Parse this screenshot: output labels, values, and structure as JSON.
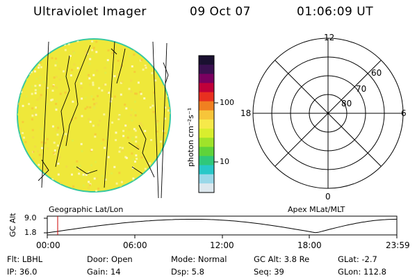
{
  "header": {
    "title": "Ultraviolet Imager",
    "date": "09 Oct 07",
    "time": "01:06:09 UT"
  },
  "colorbar": {
    "unit_label": "photon cm⁻²s⁻¹",
    "ticks": [
      "100",
      "10"
    ],
    "colors": [
      "#1a1030",
      "#3a1050",
      "#7a0060",
      "#c0003a",
      "#e83020",
      "#f08020",
      "#f7c53a",
      "#f6e94a",
      "#d9ee2e",
      "#9fe32a",
      "#5fd33a",
      "#2fc87a",
      "#28c8c8",
      "#9ad8e8",
      "#dde8ee"
    ]
  },
  "earth_image": {
    "label": "Geographic Lat/Lon",
    "fill_color": "#efe83a",
    "limb_color": "#38c8a0"
  },
  "polar_plot": {
    "label": "Apex MLat/MLT",
    "mlt_labels": {
      "top": "12",
      "left": "18",
      "right": "6",
      "bottom": "0"
    },
    "lat_labels": [
      "60",
      "70",
      "80"
    ]
  },
  "altitude_plot": {
    "ylabel": "GC Alt",
    "y_ticks": [
      "9.0",
      "1.8"
    ],
    "x_ticks": [
      "00:00",
      "06:00",
      "12:00",
      "18:00",
      "23:59"
    ],
    "marker_color": "#cc0000"
  },
  "info": {
    "filter": "Flt: LBHL",
    "door": "Door: Open",
    "mode": "Mode: Normal",
    "gc_alt": "GC Alt: 3.8 Re",
    "glat": "GLat:  -2.7",
    "ip": "IP: 36.0",
    "gain": "Gain: 14",
    "dsp": "Dsp:    5.8",
    "seq": "Seq: 39",
    "glon": "GLon: 112.8"
  }
}
